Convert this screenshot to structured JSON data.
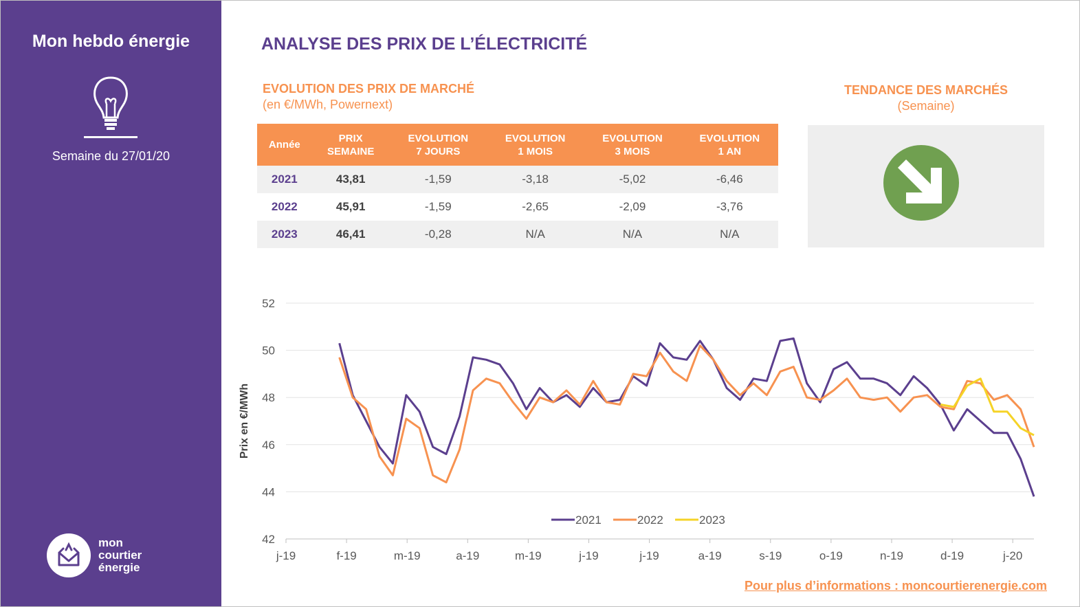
{
  "sidebar": {
    "title": "Mon hebdo énergie",
    "week": "Semaine du 27/01/20",
    "logo_lines": [
      "mon",
      "courtier",
      "énergie"
    ],
    "bulb_icon": "lightbulb-icon"
  },
  "main_title": "ANALYSE DES PRIX DE L’ÉLECTRICITÉ",
  "market": {
    "title": "EVOLUTION DES PRIX DE MARCHÉ",
    "note": "(en €/MWh, Powernext)"
  },
  "table": {
    "headers": [
      [
        "Année"
      ],
      [
        "PRIX",
        "SEMAINE"
      ],
      [
        "EVOLUTION",
        "7 JOURS"
      ],
      [
        "EVOLUTION",
        "1 MOIS"
      ],
      [
        "EVOLUTION",
        "3 MOIS"
      ],
      [
        "EVOLUTION",
        "1 AN"
      ]
    ],
    "rows": [
      [
        "2021",
        "43,81",
        "-1,59",
        "-3,18",
        "-5,02",
        "-6,46"
      ],
      [
        "2022",
        "45,91",
        "-1,59",
        "-2,65",
        "-2,09",
        "-3,76"
      ],
      [
        "2023",
        "46,41",
        "-0,28",
        "N/A",
        "N/A",
        "N/A"
      ]
    ]
  },
  "trend": {
    "title": "TENDANCE DES MARCHÉS",
    "note": "(Semaine)",
    "icon": "arrow-down-right-icon",
    "color": "#70a050"
  },
  "footer_link": "Pour plus d’informations : moncourtierenergie.com",
  "colors": {
    "purple": "#5b3f8e",
    "orange": "#f79250",
    "yellow": "#f5d327",
    "green": "#70a050"
  },
  "chart_data": {
    "type": "line",
    "ylabel": "Prix en €/MWh",
    "ylim": [
      42,
      52
    ],
    "yticks": [
      42,
      44,
      46,
      48,
      50,
      52
    ],
    "xticks": [
      "j-19",
      "f-19",
      "m-19",
      "a-19",
      "m-19",
      "j-19",
      "j-19",
      "a-19",
      "s-19",
      "o-19",
      "n-19",
      "d-19",
      "j-20"
    ],
    "grid": true,
    "legend": "bottom",
    "series": [
      {
        "name": "2021",
        "color": "#5b3f8e",
        "start_week": 4,
        "values": [
          50.3,
          48.1,
          47.0,
          45.9,
          45.2,
          48.1,
          47.4,
          45.9,
          45.6,
          47.2,
          49.7,
          49.6,
          49.4,
          48.6,
          47.5,
          48.4,
          47.8,
          48.1,
          47.6,
          48.4,
          47.8,
          47.9,
          48.9,
          48.5,
          50.3,
          49.7,
          49.6,
          50.4,
          49.6,
          48.4,
          47.9,
          48.8,
          48.7,
          50.4,
          50.5,
          48.6,
          47.8,
          49.2,
          49.5,
          48.8,
          48.8,
          48.6,
          48.1,
          48.9,
          48.4,
          47.7,
          46.6,
          47.5,
          47.0,
          46.5,
          46.5,
          45.4,
          43.8
        ]
      },
      {
        "name": "2022",
        "color": "#f79250",
        "start_week": 4,
        "values": [
          49.7,
          48.0,
          47.5,
          45.5,
          44.7,
          47.1,
          46.7,
          44.7,
          44.4,
          45.8,
          48.3,
          48.8,
          48.6,
          47.8,
          47.1,
          48.0,
          47.8,
          48.3,
          47.7,
          48.7,
          47.8,
          47.7,
          49.0,
          48.9,
          49.9,
          49.1,
          48.7,
          50.2,
          49.6,
          48.7,
          48.1,
          48.6,
          48.1,
          49.1,
          49.3,
          48.0,
          47.9,
          48.3,
          48.8,
          48.0,
          47.9,
          48.0,
          47.4,
          48.0,
          48.1,
          47.6,
          47.5,
          48.7,
          48.6,
          47.9,
          48.1,
          47.5,
          45.9
        ]
      },
      {
        "name": "2023",
        "color": "#f5d327",
        "start_week": 49,
        "values": [
          47.7,
          47.6,
          48.5,
          48.8,
          47.4,
          47.4,
          46.7,
          46.4
        ]
      }
    ]
  }
}
